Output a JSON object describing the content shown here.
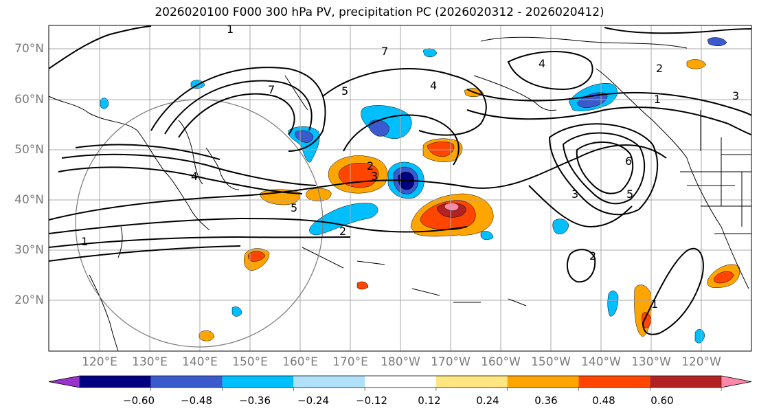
{
  "title": "2026020100 F000 300 hPa PV, precipitation PC (2026020312 - 2026020412)",
  "latitude_labels": [
    "70°N",
    "60°N",
    "50°N",
    "40°N",
    "30°N",
    "20°N"
  ],
  "longitude_labels": [
    "120°E",
    "130°E",
    "140°E",
    "150°E",
    "160°E",
    "170°E",
    "180°W",
    "170°W",
    "160°W",
    "150°W",
    "140°W",
    "130°W",
    "120°W"
  ],
  "contour_labels": [
    "1",
    "2",
    "3",
    "4",
    "5",
    "6",
    "7"
  ],
  "colorbar": {
    "tick_labels": [
      "−0.60",
      "−0.48",
      "−0.36",
      "−0.24",
      "−0.12",
      "0.12",
      "0.24",
      "0.36",
      "0.48",
      "0.60"
    ],
    "colors": [
      "#9933cc",
      "#000080",
      "#3a5acd",
      "#00bfff",
      "#b0e0fa",
      "#ffffff",
      "#ffe680",
      "#ffa500",
      "#ff4500",
      "#b22222",
      "#ff88aa"
    ]
  },
  "colors": {
    "contour": "#000000",
    "grid": "#aaaaaa",
    "axis_label": "#7a7a7a"
  }
}
